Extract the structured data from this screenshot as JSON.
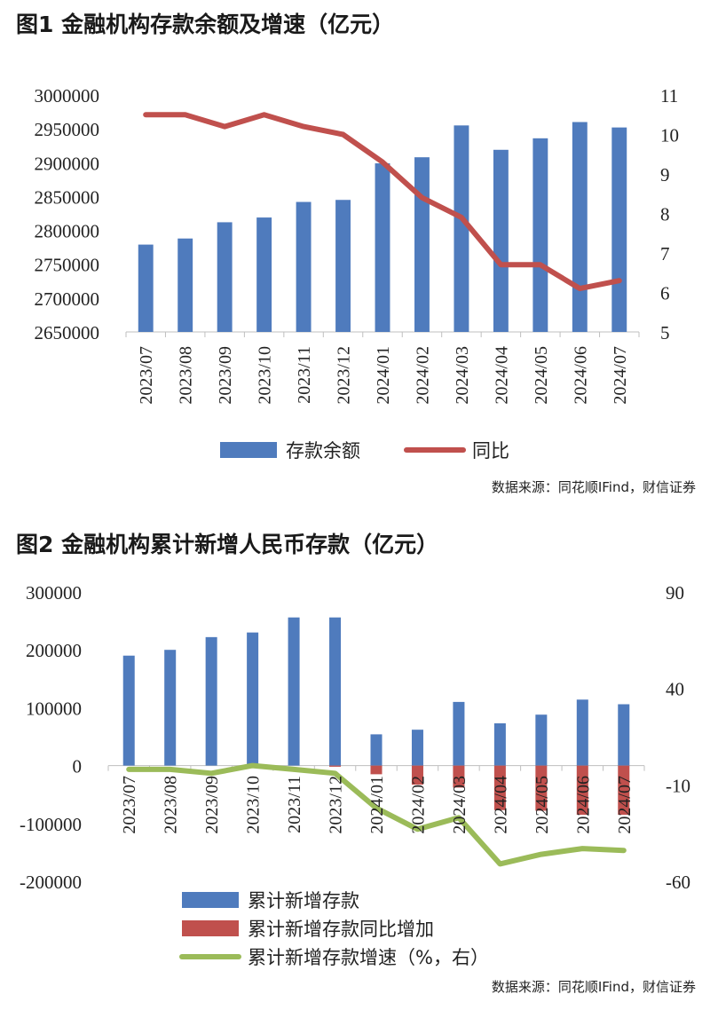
{
  "figure1": {
    "title": "图1  金融机构存款余额及增速（亿元）",
    "source": "数据来源：同花顺IFind，财信证券",
    "chart_data": {
      "type": "bar",
      "categories": [
        "2023/07",
        "2023/08",
        "2023/09",
        "2023/10",
        "2023/11",
        "2023/12",
        "2024/01",
        "2024/02",
        "2024/03",
        "2024/04",
        "2024/05",
        "2024/06",
        "2024/07"
      ],
      "series": [
        {
          "name": "存款余额",
          "type": "bar",
          "axis": "left",
          "color": "#4f7bbd",
          "values": [
            2779000,
            2788000,
            2812000,
            2819000,
            2842000,
            2845000,
            2899000,
            2908000,
            2955000,
            2919000,
            2936000,
            2960000,
            2952000
          ]
        },
        {
          "name": "同比",
          "type": "line",
          "axis": "right",
          "color": "#c0504d",
          "values": [
            10.5,
            10.5,
            10.2,
            10.5,
            10.2,
            10.0,
            9.3,
            8.4,
            7.9,
            6.7,
            6.7,
            6.1,
            6.3
          ]
        }
      ],
      "y_left": {
        "min": 2650000,
        "max": 3000000,
        "step": 50000
      },
      "y_right": {
        "min": 5.0,
        "max": 11.0,
        "step": 1.0
      },
      "legend_position": "bottom",
      "grid": false
    }
  },
  "figure2": {
    "title": "图2  金融机构累计新增人民币存款（亿元）",
    "source": "数据来源：同花顺IFind，财信证券",
    "chart_data": {
      "type": "bar",
      "categories": [
        "2023/07",
        "2023/08",
        "2023/09",
        "2023/10",
        "2023/11",
        "2023/12",
        "2024/01",
        "2024/02",
        "2024/03",
        "2024/04",
        "2024/05",
        "2024/06",
        "2024/07"
      ],
      "series": [
        {
          "name": "累计新增存款",
          "type": "bar",
          "axis": "left",
          "color": "#4f7bbd",
          "values": [
            190000,
            200000,
            222000,
            230000,
            256000,
            256000,
            54000,
            62000,
            110000,
            73000,
            88000,
            114000,
            106000
          ]
        },
        {
          "name": "累计新增存款同比增加",
          "type": "bar",
          "axis": "left",
          "color": "#c0504d",
          "values": [
            0,
            0,
            0,
            0,
            0,
            -2000,
            -15000,
            -33000,
            -38000,
            -77000,
            -78000,
            -85000,
            -85000
          ]
        },
        {
          "name": "累计新增存款增速（%，右）",
          "type": "line",
          "axis": "right",
          "color": "#9bbb59",
          "values": [
            -2,
            -2,
            -4,
            0,
            -2,
            -4,
            -22,
            -33,
            -27,
            -51,
            -46,
            -43,
            -44
          ]
        }
      ],
      "y_left": {
        "min": -200000,
        "max": 300000,
        "step": 100000
      },
      "y_right": {
        "min": -60,
        "max": 90,
        "step": 50
      },
      "legend_position": "bottom",
      "grid": false
    }
  }
}
